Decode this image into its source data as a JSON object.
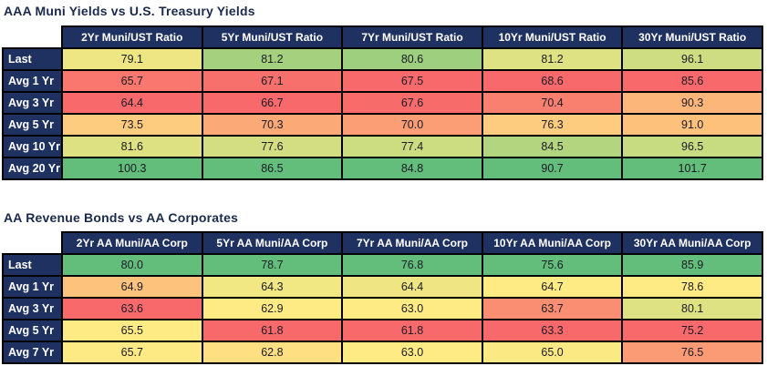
{
  "theme": {
    "header_bg": "#1E3160",
    "header_text": "#FFFFFF",
    "title_color": "#1B2A4C",
    "border_color": "#000000",
    "value_text": "#1A1A24",
    "page_bg": "#FFFFFF"
  },
  "heatmap": {
    "description": "per-column 3-color scale: min -> red, median -> yellow, max -> green",
    "min_color": "#F8696B",
    "mid_color": "#FFEB84",
    "max_color": "#63BE7B"
  },
  "chart_data": [
    {
      "type": "heatmap",
      "title": "AAA Muni Yields vs U.S. Treasury Yields",
      "decimals": 1,
      "columns": [
        "2Yr Muni/UST Ratio",
        "5Yr Muni/UST Ratio",
        "7Yr Muni/UST Ratio",
        "10Yr Muni/UST Ratio",
        "30Yr Muni/UST Ratio"
      ],
      "rows": [
        {
          "label": "Last",
          "values": [
            79.1,
            81.2,
            80.6,
            81.2,
            96.1
          ]
        },
        {
          "label": "Avg 1 Yr",
          "values": [
            65.7,
            67.1,
            67.5,
            68.6,
            85.6
          ]
        },
        {
          "label": "Avg 3 Yr",
          "values": [
            64.4,
            66.7,
            67.6,
            70.4,
            90.3
          ]
        },
        {
          "label": "Avg 5 Yr",
          "values": [
            73.5,
            70.3,
            70.0,
            76.3,
            91.0
          ]
        },
        {
          "label": "Avg 10 Yr",
          "values": [
            81.6,
            77.6,
            77.4,
            84.5,
            96.5
          ]
        },
        {
          "label": "Avg 20 Yr",
          "values": [
            100.3,
            86.5,
            84.8,
            90.7,
            101.7
          ]
        }
      ]
    },
    {
      "type": "heatmap",
      "title": "AA Revenue Bonds vs AA Corporates",
      "decimals": 1,
      "columns": [
        "2Yr AA Muni/AA Corp",
        "5Yr AA Muni/AA Corp",
        "7Yr AA Muni/AA Corp",
        "10Yr AA Muni/AA Corp",
        "30Yr AA Muni/AA Corp"
      ],
      "rows": [
        {
          "label": "Last",
          "values": [
            80.0,
            78.7,
            76.8,
            75.6,
            85.9
          ]
        },
        {
          "label": "Avg 1 Yr",
          "values": [
            64.9,
            64.3,
            64.4,
            64.7,
            78.6
          ]
        },
        {
          "label": "Avg 3 Yr",
          "values": [
            63.6,
            62.9,
            63.0,
            63.7,
            80.1
          ]
        },
        {
          "label": "Avg 5 Yr",
          "values": [
            65.5,
            61.8,
            61.8,
            63.3,
            75.2
          ]
        },
        {
          "label": "Avg 7 Yr",
          "values": [
            65.7,
            62.8,
            63.0,
            65.0,
            76.5
          ]
        }
      ]
    }
  ]
}
